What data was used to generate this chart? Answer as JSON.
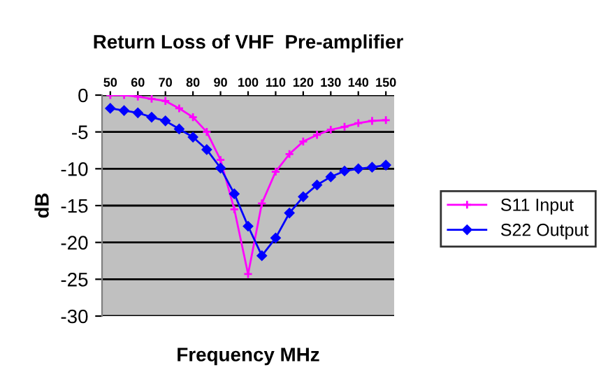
{
  "chart_data": {
    "type": "line",
    "title": "Return Loss of VHF  Pre-amplifier",
    "xlabel": "Frequency MHz",
    "ylabel": "dB",
    "x": [
      50,
      55,
      60,
      65,
      70,
      75,
      80,
      85,
      90,
      95,
      100,
      105,
      110,
      115,
      120,
      125,
      130,
      135,
      140,
      145,
      150
    ],
    "series": [
      {
        "name": "S11 Input",
        "color": "#ff00ff",
        "marker": "cross",
        "values": [
          0,
          0,
          -0.2,
          -0.5,
          -0.8,
          -1.8,
          -3.0,
          -5.0,
          -8.8,
          -15.5,
          -24.3,
          -14.7,
          -10.4,
          -8.0,
          -6.3,
          -5.4,
          -4.7,
          -4.3,
          -3.8,
          -3.5,
          -3.4
        ]
      },
      {
        "name": "S22 Output",
        "color": "#0000ff",
        "marker": "diamond",
        "values": [
          -1.8,
          -2.1,
          -2.4,
          -3.0,
          -3.5,
          -4.6,
          -5.7,
          -7.4,
          -9.9,
          -13.4,
          -17.8,
          -21.8,
          -19.4,
          -16.0,
          -13.8,
          -12.2,
          -11.1,
          -10.3,
          -10.0,
          -9.8,
          -9.5
        ]
      }
    ],
    "xlim": [
      47,
      153
    ],
    "xticks": [
      50,
      60,
      70,
      80,
      90,
      100,
      110,
      120,
      130,
      140,
      150
    ],
    "ylim": [
      -30,
      0
    ],
    "yticks": [
      -30,
      -25,
      -20,
      -15,
      -10,
      -5,
      0
    ],
    "grid": "y",
    "legend": "right",
    "line_style": "solid"
  }
}
